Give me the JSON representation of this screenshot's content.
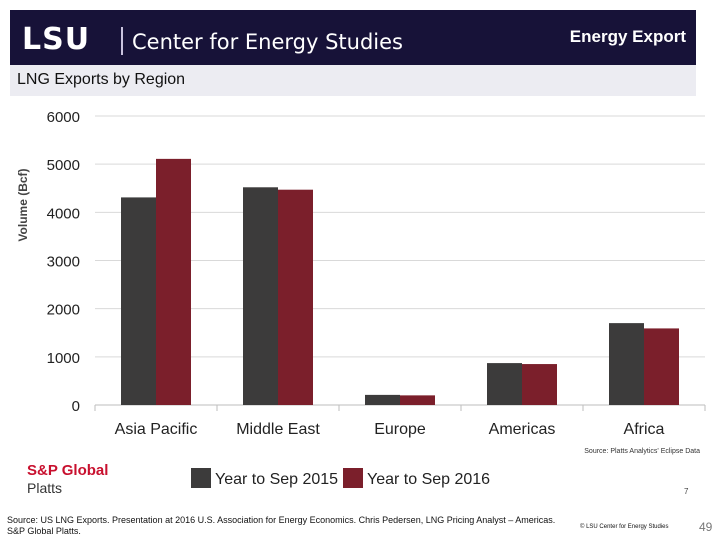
{
  "header": {
    "logo": "LSU",
    "center_name": "Center for Energy Studies",
    "slide_title": "Energy Export",
    "subtitle": "LNG Exports by Region"
  },
  "colors": {
    "header_bg": "#171238",
    "subbar_bg": "#ececf2",
    "series_2015": "#3c3b3b",
    "series_2016": "#7b1f2b"
  },
  "chart_data": {
    "type": "bar",
    "title": "",
    "xlabel": "",
    "ylabel": "Volume (Bcf)",
    "ylim": [
      0,
      6000
    ],
    "yticks": [
      "0",
      "1000",
      "2000",
      "3000",
      "4000",
      "5000",
      "6000"
    ],
    "categories": [
      "Asia Pacific",
      "Middle East",
      "Europe",
      "Americas",
      "Africa"
    ],
    "series": [
      {
        "name": "Year to Sep 2015",
        "values": [
          4310,
          4520,
          210,
          870,
          1700
        ]
      },
      {
        "name": "Year to Sep 2016",
        "values": [
          5110,
          4470,
          200,
          850,
          1590
        ]
      }
    ],
    "grid": true,
    "legend_position": "bottom",
    "source_note": "Source: Platts Analytics' Eclipse Data"
  },
  "footer": {
    "brand_line1": "S&P Global",
    "brand_line2": "Platts",
    "chart_page": "7",
    "source_line1": "Source: US LNG Exports. Presentation at 2016 U.S. Association for Energy Economics. Chris Pedersen, LNG Pricing Analyst – Americas.",
    "source_line2": "S&P Global Platts.",
    "copyright": "© LSU Center for Energy Studies",
    "page_number": "49"
  }
}
